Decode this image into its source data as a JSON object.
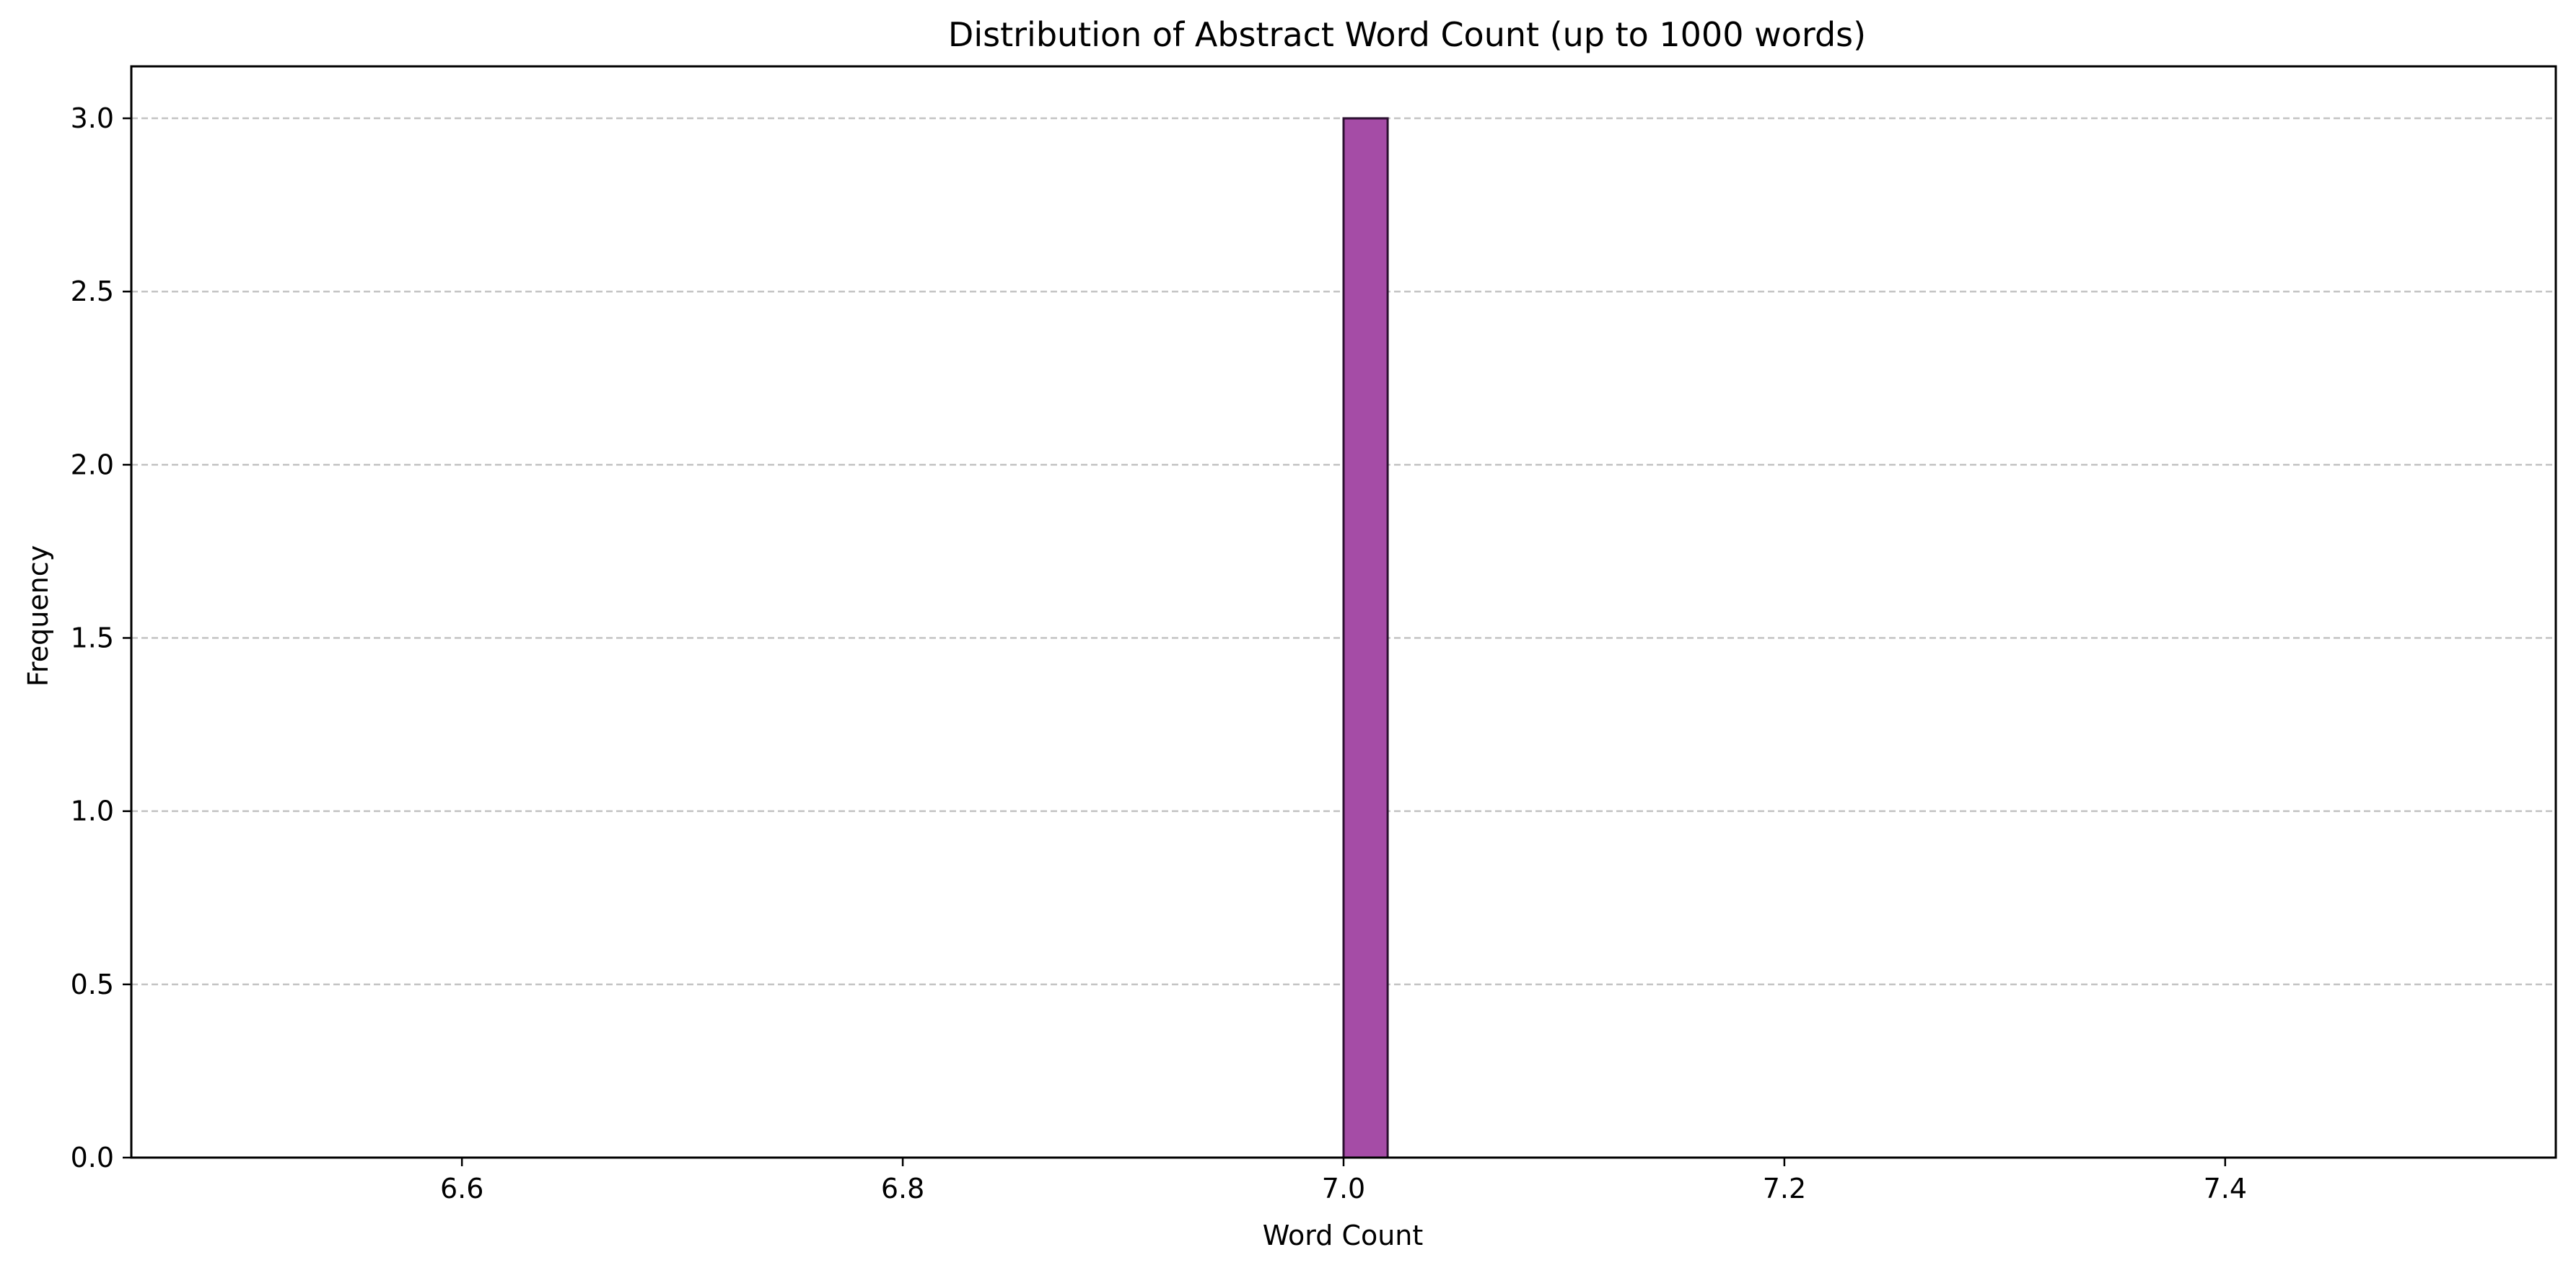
{
  "chart_data": {
    "type": "bar",
    "title": "Distribution of Abstract Word Count (up to 1000 words)",
    "xlabel": "Word Count",
    "ylabel": "Frequency",
    "xlim": [
      6.45,
      7.55
    ],
    "ylim": [
      0,
      3.15
    ],
    "x_ticks": [
      6.6,
      6.8,
      7.0,
      7.2,
      7.4
    ],
    "x_tick_labels": [
      "6.6",
      "6.8",
      "7.0",
      "7.2",
      "7.4"
    ],
    "y_ticks": [
      0.0,
      0.5,
      1.0,
      1.5,
      2.0,
      2.5,
      3.0
    ],
    "y_tick_labels": [
      "0.0",
      "0.5",
      "1.0",
      "1.5",
      "2.0",
      "2.5",
      "3.0"
    ],
    "bins": [
      {
        "start": 7.0,
        "end": 7.02,
        "value": 3
      }
    ],
    "baseline": {
      "start": 6.5,
      "end": 7.5
    },
    "grid": {
      "y": true,
      "x": false,
      "style": "dashed"
    },
    "colors": {
      "bar_fill": "#a54ca6",
      "bar_edge": "#2b1030",
      "grid": "#c4c4c4",
      "axes": "#000000"
    }
  }
}
